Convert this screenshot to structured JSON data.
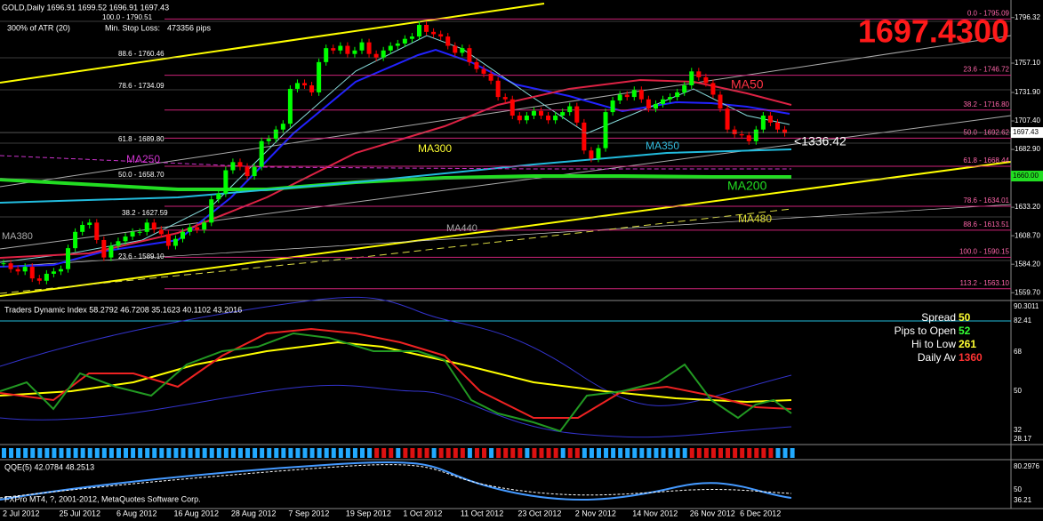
{
  "header": {
    "symbol_line": "GOLD,Daily  1696.91 1699.52 1696.91 1697.43",
    "atr": "300% of ATR (20)",
    "stop_label": "Min. Stop Loss:",
    "stop_value": "473356 pips",
    "big_price": "1697.4300",
    "start_date": "2 Jul 2012"
  },
  "chart_data": {
    "type": "candlestick",
    "categories": [
      null,
      null,
      null,
      null,
      null,
      null,
      null,
      null,
      "25 Jul 2012",
      null,
      null,
      null,
      null,
      null,
      null,
      null,
      "6 Aug 2012",
      null,
      null,
      null,
      null,
      null,
      null,
      null,
      "16 Aug 2012",
      null,
      null,
      null,
      null,
      null,
      null,
      null,
      "28 Aug 2012",
      null,
      null,
      null,
      null,
      null,
      null,
      null,
      "7 Sep 2012",
      null,
      null,
      null,
      null,
      null,
      null,
      null,
      "19 Sep 2012",
      null,
      null,
      null,
      null,
      null,
      null,
      null,
      "1 Oct 2012",
      null,
      null,
      null,
      null,
      null,
      null,
      null,
      "11 Oct 2012",
      null,
      null,
      null,
      null,
      null,
      null,
      null,
      "23 Oct 2012",
      null,
      null,
      null,
      null,
      null,
      null,
      null,
      "2 Nov 2012",
      null,
      null,
      null,
      null,
      null,
      null,
      null,
      "14 Nov 2012",
      null,
      null,
      null,
      null,
      null,
      null,
      null,
      "26 Nov 2012",
      null,
      null,
      null,
      null,
      null,
      null,
      "6 Dec 2012",
      null,
      null,
      null,
      null,
      null,
      null
    ],
    "values": [
      1585,
      1580,
      1578,
      1582,
      1572,
      1570,
      1576,
      1578,
      1580,
      1598,
      1612,
      1618,
      1620,
      1605,
      1590,
      1600,
      1604,
      1608,
      1612,
      1612,
      1620,
      1614,
      1610,
      1600,
      1606,
      1612,
      1616,
      1614,
      1620,
      1640,
      1645,
      1665,
      1672,
      1668,
      1660,
      1668,
      1690,
      1692,
      1700,
      1705,
      1735,
      1740,
      1738,
      1732,
      1758,
      1770,
      1768,
      1772,
      1765,
      1768,
      1775,
      1765,
      1762,
      1768,
      1772,
      1774,
      1778,
      1780,
      1790,
      1784,
      1782,
      1780,
      1772,
      1766,
      1770,
      1758,
      1752,
      1748,
      1742,
      1728,
      1726,
      1712,
      1708,
      1712,
      1716,
      1712,
      1708,
      1712,
      1715,
      1720,
      1706,
      1682,
      1675,
      1684,
      1715,
      1725,
      1730,
      1728,
      1734,
      1726,
      1718,
      1722,
      1726,
      1728,
      1732,
      1738,
      1750,
      1745,
      1740,
      1730,
      1718,
      1700,
      1696,
      1695,
      1690,
      1700,
      1712,
      1706,
      1700,
      1697
    ],
    "up_color": "#00ff00",
    "down_color": "#ff0000",
    "ylim": [
      1553.0,
      1811.4
    ],
    "yticks": [
      {
        "value": 1796.32,
        "label": "1796.32"
      },
      {
        "value": 1757.1,
        "label": "1757.10"
      },
      {
        "value": 1731.9,
        "label": "1731.90"
      },
      {
        "value": 1707.4,
        "label": "1707.40"
      },
      {
        "value": 1682.9,
        "label": "1682.90"
      },
      {
        "value": 1633.2,
        "label": "1633.20"
      },
      {
        "value": 1608.7,
        "label": "1608.70"
      },
      {
        "value": 1584.2,
        "label": "1584.20"
      },
      {
        "value": 1559.7,
        "label": "1559.70"
      }
    ],
    "last_price": {
      "value": 1697.43,
      "label": "1697.43"
    },
    "level_1660": {
      "value": 1660,
      "label": "1660.00"
    },
    "fib_levels": [
      {
        "value": 1795.09,
        "label": "0.0 - 1795.09"
      },
      {
        "value": 1746.72,
        "label": "23.6 - 1746.72"
      },
      {
        "value": 1716.8,
        "label": "38.2 - 1716.80"
      },
      {
        "value": 1692.62,
        "label": "50.0 - 1692.62"
      },
      {
        "value": 1668.44,
        "label": "61.8 - 1668.44"
      },
      {
        "value": 1634.01,
        "label": "78.6 - 1634.01"
      },
      {
        "value": 1613.51,
        "label": "88.6 - 1613.51"
      },
      {
        "value": 1590.15,
        "label": "100.0 - 1590.15"
      },
      {
        "value": 1563.1,
        "label": "113.2 - 1563.10"
      }
    ],
    "left_fib_labels": [
      "100.0 - 1790.51",
      "88.6 - 1760.46",
      "78.6 - 1734.09",
      "61.8 - 1689.80",
      "50.0 - 1658.70",
      "38.2 - 1627.59",
      "23.6 - 1589.10"
    ],
    "ma_labels": [
      "MA50",
      "MA300",
      "MA350",
      "MA250",
      "MA200",
      "MA380",
      "MA440",
      "MA480"
    ],
    "annotation": "<1336.42"
  },
  "tdi": {
    "title": "Traders Dynamic Index 58.2792 46.7208 35.1623 40.1102 43.2016",
    "ticks": [
      "90.3011",
      "82.41",
      "68",
      "50",
      "32",
      "28.17"
    ]
  },
  "stats": [
    {
      "label": "Spread",
      "value": "50"
    },
    {
      "label": "Pips to Open",
      "value": "52"
    },
    {
      "label": "Hi to Low",
      "value": "261"
    },
    {
      "label": "Daily Av",
      "value": "1360"
    }
  ],
  "qqe": {
    "title": "QQE(5) 42.0784 48.2513",
    "ticks": [
      "80.2976",
      "50",
      "36.21"
    ]
  },
  "footer": "FXPro MT4, ?, 2001-2012, MetaQuotes Software Corp."
}
